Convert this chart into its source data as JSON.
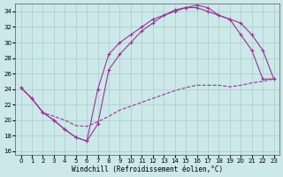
{
  "xlabel": "Windchill (Refroidissement éolien,°C)",
  "bg_color": "#cce8e8",
  "grid_color": "#aacccc",
  "line_color": "#993399",
  "xlim": [
    -0.5,
    23.5
  ],
  "ylim": [
    15.5,
    35.0
  ],
  "xticks": [
    0,
    1,
    2,
    3,
    4,
    5,
    6,
    7,
    8,
    9,
    10,
    11,
    12,
    13,
    14,
    15,
    16,
    17,
    18,
    19,
    20,
    21,
    22,
    23
  ],
  "yticks": [
    16,
    18,
    20,
    22,
    24,
    26,
    28,
    30,
    32,
    34
  ],
  "curve1_x": [
    0,
    1,
    2,
    3,
    4,
    5,
    6,
    7,
    8,
    9,
    10,
    11,
    12,
    13,
    14,
    15,
    16,
    17,
    18,
    19,
    20,
    21,
    22,
    23
  ],
  "curve1_y": [
    24.2,
    22.8,
    21.0,
    20.5,
    20.0,
    19.3,
    19.2,
    19.8,
    20.5,
    21.3,
    21.8,
    22.3,
    22.8,
    23.3,
    23.8,
    24.2,
    24.5,
    24.5,
    24.5,
    24.3,
    24.5,
    24.8,
    25.0,
    25.3
  ],
  "curve2_x": [
    0,
    1,
    2,
    3,
    4,
    5,
    6,
    7,
    8,
    9,
    10,
    11,
    12,
    13,
    14,
    15,
    16,
    17,
    18,
    19,
    20,
    21,
    22,
    23
  ],
  "curve2_y": [
    24.2,
    22.8,
    21.0,
    20.0,
    18.8,
    17.8,
    17.3,
    19.5,
    26.5,
    28.5,
    30.0,
    31.5,
    32.5,
    33.5,
    34.2,
    34.5,
    34.5,
    34.0,
    33.5,
    33.0,
    32.5,
    31.0,
    29.0,
    25.3
  ],
  "curve3_x": [
    0,
    1,
    2,
    3,
    4,
    5,
    6,
    7,
    8,
    9,
    10,
    11,
    12,
    13,
    14,
    15,
    16,
    17,
    18,
    19,
    20,
    21,
    22,
    23
  ],
  "curve3_y": [
    24.2,
    22.8,
    21.0,
    20.0,
    18.8,
    17.8,
    17.3,
    24.0,
    28.5,
    30.0,
    31.0,
    32.0,
    33.0,
    33.5,
    34.0,
    34.5,
    34.8,
    34.5,
    33.5,
    33.0,
    31.0,
    29.0,
    25.3,
    25.3
  ]
}
